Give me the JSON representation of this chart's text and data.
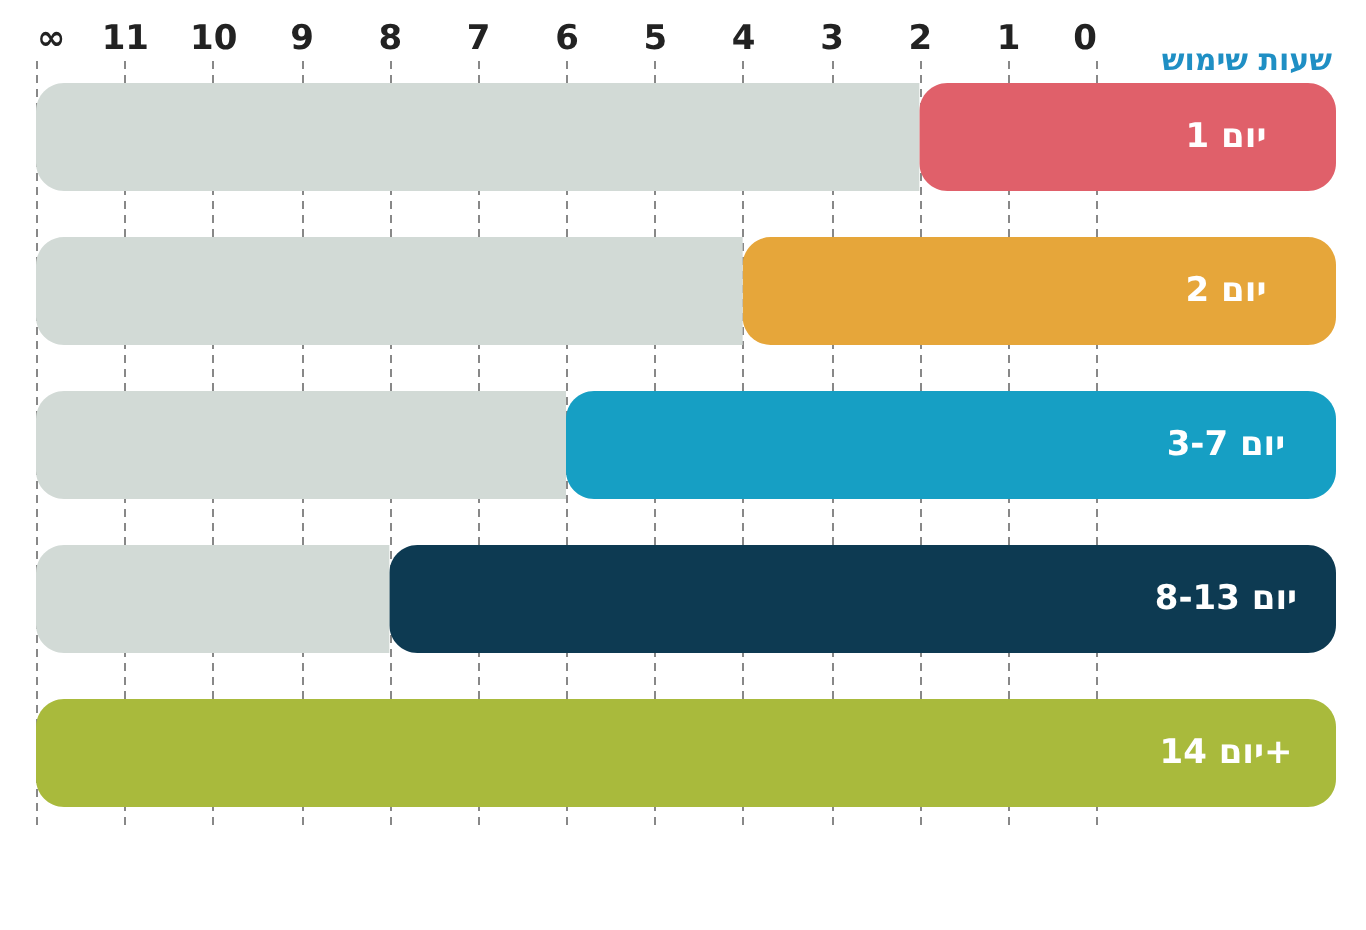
{
  "chart_data": {
    "type": "bar",
    "orientation": "horizontal",
    "stacked": true,
    "xlabel": "שעות שימוש",
    "categories": [
      "יום 1",
      "יום 2",
      "יום 3-7",
      "יום 8-13",
      "יום 14+"
    ],
    "series": [
      {
        "colors": [
          "#e0606a",
          "#e6a63a",
          "#169fc4",
          "#0d3a52",
          "#a9ba3c"
        ],
        "values": [
          2,
          4,
          6,
          8,
          12
        ]
      },
      {
        "color": "#d2dad6",
        "values": [
          10,
          8,
          6,
          4,
          0
        ]
      }
    ],
    "xlim": [
      12,
      0
    ],
    "xticks": [
      0,
      1,
      2,
      3,
      4,
      5,
      6,
      7,
      8,
      9,
      10,
      11,
      {
        "value": 12,
        "label": "∞"
      }
    ],
    "grid": "x"
  }
}
